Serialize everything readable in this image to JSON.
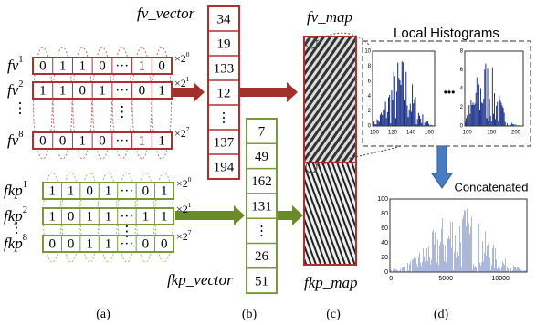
{
  "fv_block": {
    "rows": [
      {
        "label": "fv",
        "sup": "1",
        "bits": [
          "0",
          "1",
          "1",
          "0",
          "···",
          "1",
          "0"
        ],
        "mult": "×2",
        "exp": "0"
      },
      {
        "label": "fv",
        "sup": "2",
        "bits": [
          "1",
          "1",
          "0",
          "1",
          "···",
          "0",
          "1"
        ],
        "mult": "×2",
        "exp": "1"
      },
      {
        "label": "fv",
        "sup": "8",
        "bits": [
          "0",
          "0",
          "1",
          "0",
          "···",
          "1",
          "1"
        ],
        "mult": "×2",
        "exp": "7"
      }
    ],
    "vdots": "⋮"
  },
  "fkp_block": {
    "rows": [
      {
        "label": "fkp",
        "sup": "1",
        "bits": [
          "1",
          "1",
          "0",
          "1",
          "···",
          "0",
          "1"
        ],
        "mult": "×2",
        "exp": "0"
      },
      {
        "label": "fkp",
        "sup": "2",
        "bits": [
          "1",
          "0",
          "1",
          "1",
          "···",
          "1",
          "1"
        ],
        "mult": "×2",
        "exp": "1"
      },
      {
        "label": "fkp",
        "sup": "8",
        "bits": [
          "0",
          "0",
          "1",
          "1",
          "···",
          "0",
          "0"
        ],
        "mult": "×2",
        "exp": "7"
      }
    ],
    "vdots": "⋮"
  },
  "fv_vector": {
    "label": "fv_vector",
    "cells": [
      34,
      19,
      133,
      12,
      "⋮",
      137,
      194
    ]
  },
  "fkp_vector": {
    "label": "fkp_vector",
    "cells": [
      7,
      49,
      162,
      131,
      "⋮",
      26,
      51
    ]
  },
  "fv_map": {
    "label": "fv_map"
  },
  "fkp_map": {
    "label": "fkp_map"
  },
  "histograms": {
    "title": "Local Histograms",
    "left": {
      "xticks": [
        "100",
        "120",
        "140",
        "160"
      ],
      "yticks": [
        "0",
        "2",
        "4",
        "6",
        "8",
        "10"
      ]
    },
    "right": {
      "xticks": [
        "100",
        "150",
        "200"
      ],
      "yticks": [
        "0",
        "2",
        "4",
        "6",
        "8"
      ]
    },
    "dots": "•••"
  },
  "concatenated": {
    "label": "Concatenated",
    "xticks": [
      "0",
      "5000",
      "10000"
    ],
    "yticks": [
      "0",
      "20",
      "40",
      "60",
      "80",
      "100"
    ]
  },
  "captions": [
    "(a)",
    "(b)",
    "(c)",
    "(d)"
  ]
}
